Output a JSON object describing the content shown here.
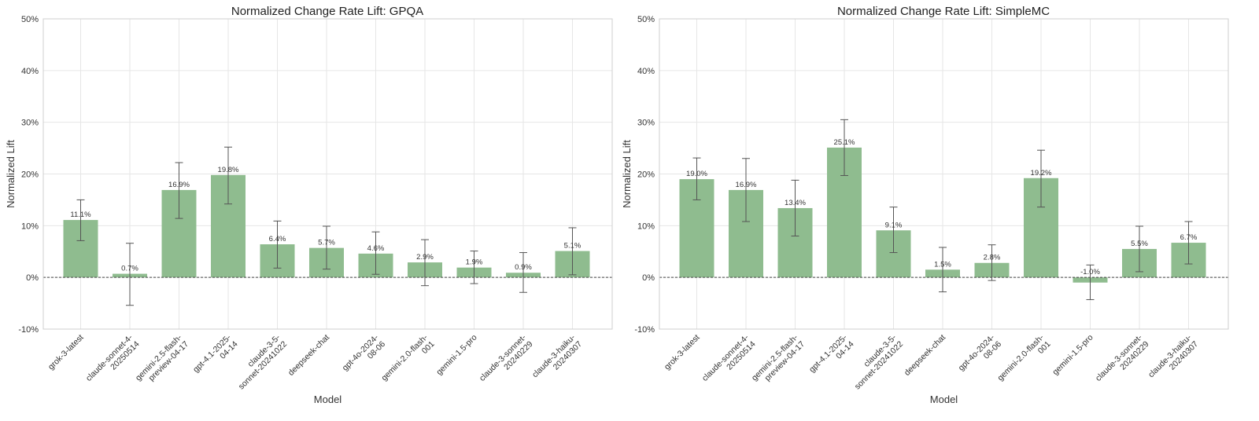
{
  "chart_data": [
    {
      "type": "bar",
      "title": "Normalized Change Rate Lift: GPQA",
      "xlabel": "Model",
      "ylabel": "Normalized Lift",
      "ylim": [
        -10,
        50
      ],
      "yticks": [
        "-10%",
        "0%",
        "10%",
        "20%",
        "30%",
        "40%",
        "50%"
      ],
      "ytick_values": [
        -10,
        0,
        10,
        20,
        30,
        40,
        50
      ],
      "grid": true,
      "categories": [
        [
          "grok-3-latest"
        ],
        [
          "claude-sonnet-4-",
          "20250514"
        ],
        [
          "gemini-2.5-flash-",
          "preview-04-17"
        ],
        [
          "gpt-4.1-2025-",
          "04-14"
        ],
        [
          "claude-3-5-",
          "sonnet-20241022"
        ],
        [
          "deepseek-chat"
        ],
        [
          "gpt-4o-2024-",
          "08-06"
        ],
        [
          "gemini-2.0-flash-",
          "001"
        ],
        [
          "gemini-1.5-pro"
        ],
        [
          "claude-3-sonnet-",
          "20240229"
        ],
        [
          "claude-3-haiku-",
          "20240307"
        ]
      ],
      "values": [
        11.1,
        0.7,
        16.9,
        19.8,
        6.4,
        5.7,
        4.6,
        2.9,
        1.9,
        0.9,
        5.1
      ],
      "labels": [
        "11.1%",
        "0.7%",
        "16.9%",
        "19.8%",
        "6.4%",
        "5.7%",
        "4.6%",
        "2.9%",
        "1.9%",
        "0.9%",
        "5.1%"
      ],
      "err_low": [
        7.1,
        -5.4,
        11.4,
        14.2,
        1.8,
        1.6,
        0.6,
        -1.6,
        -1.2,
        -2.9,
        0.5
      ],
      "err_high": [
        15.0,
        6.6,
        22.2,
        25.2,
        10.9,
        9.9,
        8.8,
        7.3,
        5.1,
        4.8,
        9.6
      ]
    },
    {
      "type": "bar",
      "title": "Normalized Change Rate Lift: SimpleMC",
      "xlabel": "Model",
      "ylabel": "Normalized Lift",
      "ylim": [
        -10,
        50
      ],
      "yticks": [
        "-10%",
        "0%",
        "10%",
        "20%",
        "30%",
        "40%",
        "50%"
      ],
      "ytick_values": [
        -10,
        0,
        10,
        20,
        30,
        40,
        50
      ],
      "grid": true,
      "categories": [
        [
          "grok-3-latest"
        ],
        [
          "claude-sonnet-4-",
          "20250514"
        ],
        [
          "gemini-2.5-flash-",
          "preview-04-17"
        ],
        [
          "gpt-4.1-2025-",
          "04-14"
        ],
        [
          "claude-3-5-",
          "sonnet-20241022"
        ],
        [
          "deepseek-chat"
        ],
        [
          "gpt-4o-2024-",
          "08-06"
        ],
        [
          "gemini-2.0-flash-",
          "001"
        ],
        [
          "gemini-1.5-pro"
        ],
        [
          "claude-3-sonnet-",
          "20240229"
        ],
        [
          "claude-3-haiku-",
          "20240307"
        ]
      ],
      "values": [
        19.0,
        16.9,
        13.4,
        25.1,
        9.1,
        1.5,
        2.8,
        19.2,
        -1.0,
        5.5,
        6.7
      ],
      "labels": [
        "19.0%",
        "16.9%",
        "13.4%",
        "25.1%",
        "9.1%",
        "1.5%",
        "2.8%",
        "19.2%",
        "-1.0%",
        "5.5%",
        "6.7%"
      ],
      "err_low": [
        15.0,
        10.8,
        8.0,
        19.7,
        4.8,
        -2.8,
        -0.6,
        13.6,
        -4.3,
        1.1,
        2.6
      ],
      "err_high": [
        23.1,
        23.0,
        18.8,
        30.5,
        13.6,
        5.8,
        6.3,
        24.6,
        2.4,
        9.9,
        10.8
      ]
    }
  ],
  "colors": {
    "bar": "#8fbc8f",
    "error": "#555555",
    "grid": "#e6e6e6",
    "frame": "#cfcfcf"
  }
}
